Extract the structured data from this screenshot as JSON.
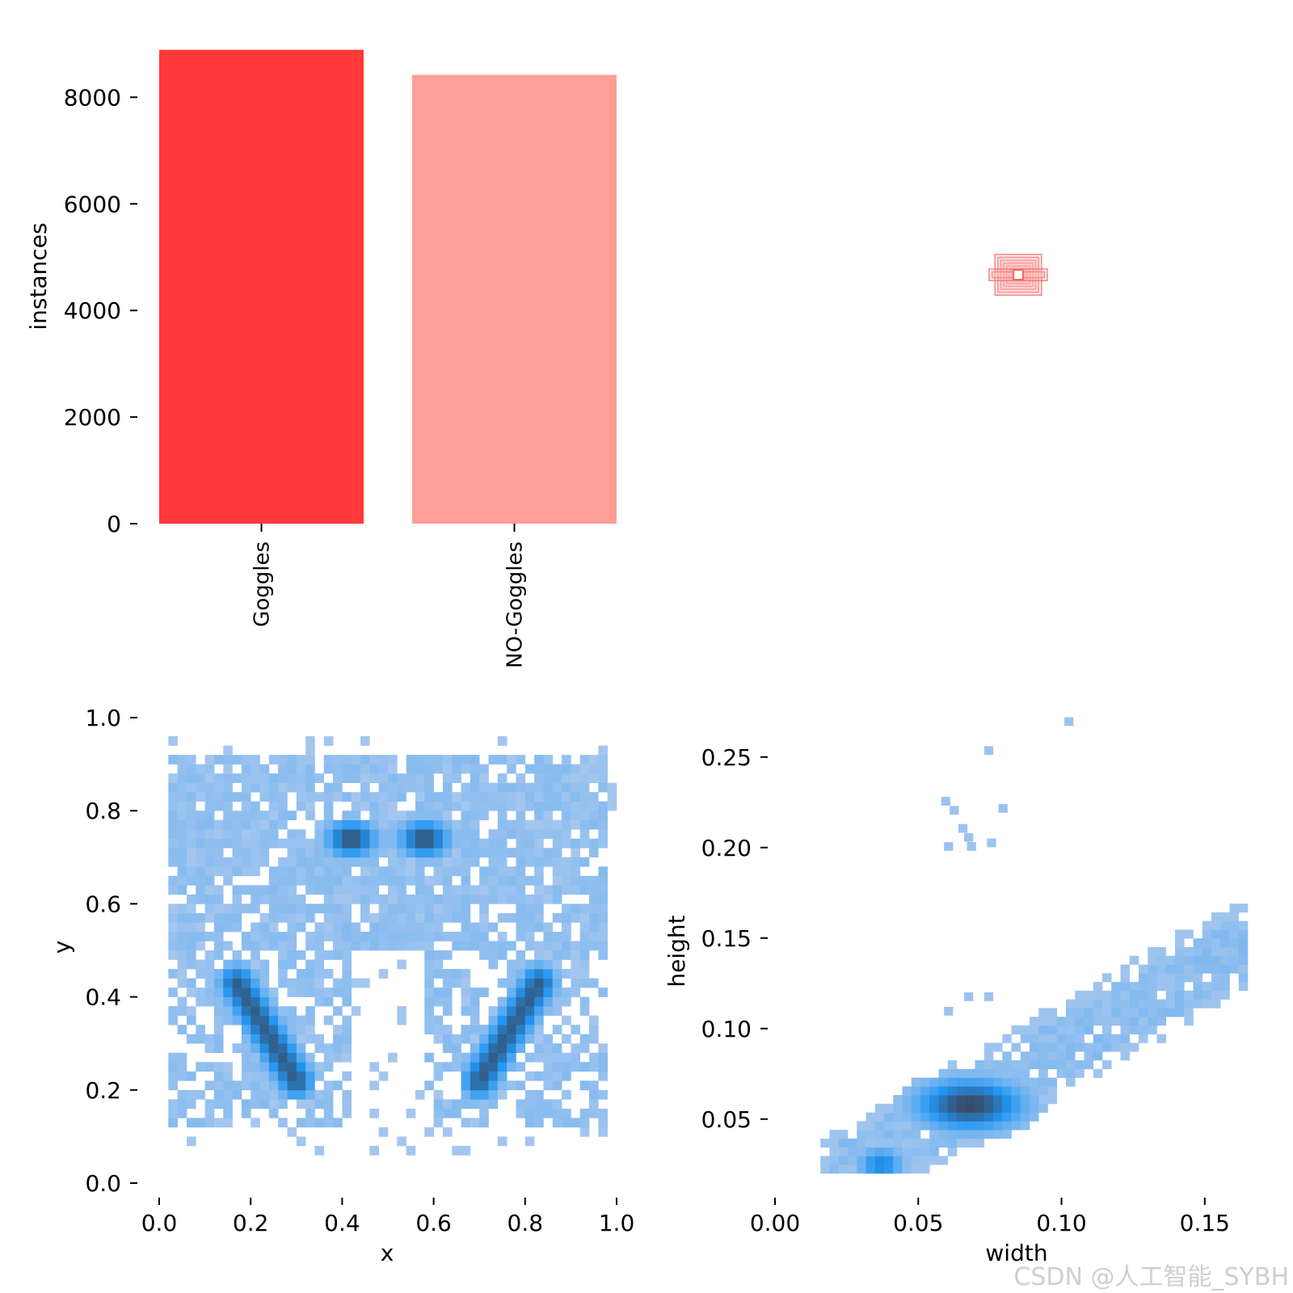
{
  "colors": {
    "bar_goggles": "#ff3838",
    "bar_no_goggles": "#ff9d97",
    "heat_light": "#a9c8ee",
    "heat_mid": "#2196f3",
    "heat_dark": "#37475e",
    "box_outline": "#f26a6a",
    "box_fill": "#ffb3b3"
  },
  "watermark": "CSDN @人工智能_SYBH",
  "chart_data": [
    {
      "type": "bar",
      "categories": [
        "Goggles",
        "NO-Goggles"
      ],
      "values": [
        8890,
        8420
      ],
      "xlabel": "",
      "ylabel": "instances",
      "ylim": [
        0,
        8900
      ],
      "yticks": [
        "0",
        "2000",
        "4000",
        "6000",
        "8000"
      ],
      "grid": false
    },
    {
      "type": "scatter",
      "description_type": "box-overlay",
      "center": [
        0.5,
        0.5
      ],
      "widths": [
        0.02,
        0.03,
        0.04,
        0.05,
        0.06,
        0.07,
        0.08,
        0.09,
        0.1
      ],
      "heights": [
        0.01,
        0.02,
        0.03,
        0.04,
        0.05,
        0.06,
        0.07
      ],
      "xlim": [
        0,
        1
      ],
      "ylim": [
        0,
        1
      ]
    },
    {
      "type": "heatmap",
      "xlabel": "x",
      "ylabel": "y",
      "xlim": [
        0,
        1
      ],
      "ylim": [
        0,
        1
      ],
      "xticks": [
        "0.0",
        "0.2",
        "0.4",
        "0.6",
        "0.8",
        "1.0"
      ],
      "yticks": [
        "0.0",
        "0.2",
        "0.4",
        "0.6",
        "0.8",
        "1.0"
      ],
      "bins": [
        50,
        50
      ],
      "components": [
        {
          "cx": 0.42,
          "cy": 0.74,
          "sx": 0.035,
          "sy": 0.025,
          "weight": 1.0
        },
        {
          "cx": 0.58,
          "cy": 0.74,
          "sx": 0.035,
          "sy": 0.025,
          "weight": 1.0
        },
        {
          "from": [
            0.17,
            0.43
          ],
          "to": [
            0.3,
            0.22
          ],
          "width": 0.025,
          "weight": 0.9
        },
        {
          "from": [
            0.83,
            0.43
          ],
          "to": [
            0.7,
            0.22
          ],
          "width": 0.025,
          "weight": 0.9
        }
      ],
      "extent": [
        [
          0.0,
          0.1
        ],
        [
          1.0,
          0.9
        ]
      ]
    },
    {
      "type": "heatmap",
      "xlabel": "width",
      "ylabel": "height",
      "xlim": [
        0,
        0.165
      ],
      "ylim": [
        0.02,
        0.27
      ],
      "xticks": [
        "0.00",
        "0.05",
        "0.10",
        "0.15"
      ],
      "yticks": [
        "0.05",
        "0.10",
        "0.15",
        "0.20",
        "0.25"
      ],
      "bins": [
        50,
        50
      ],
      "trend": {
        "from": [
          0.03,
          0.025
        ],
        "to": [
          0.162,
          0.145
        ]
      },
      "peak": {
        "cx": 0.068,
        "cy": 0.058
      },
      "outliers": [
        [
          0.058,
          0.228
        ],
        [
          0.061,
          0.223
        ],
        [
          0.064,
          0.213
        ],
        [
          0.066,
          0.208
        ],
        [
          0.073,
          0.256
        ],
        [
          0.078,
          0.224
        ],
        [
          0.074,
          0.205
        ],
        [
          0.059,
          0.203
        ],
        [
          0.067,
          0.203
        ],
        [
          0.101,
          0.272
        ],
        [
          0.073,
          0.12
        ],
        [
          0.066,
          0.12
        ],
        [
          0.059,
          0.112
        ]
      ]
    }
  ]
}
